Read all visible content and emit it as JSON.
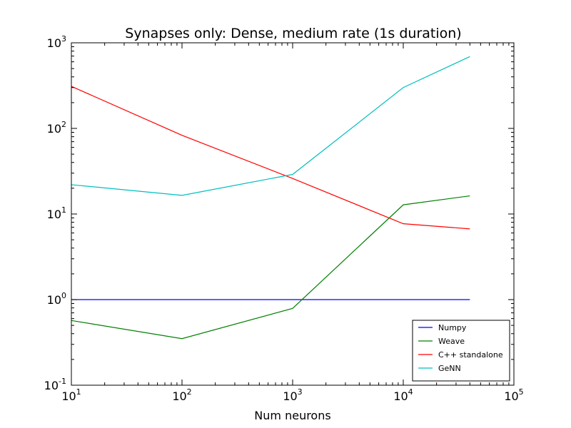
{
  "chart_data": {
    "type": "line",
    "title": "Synapses only: Dense, medium rate (1s duration)",
    "xlabel": "Num neurons",
    "ylabel": "",
    "xscale": "log",
    "yscale": "log",
    "xlim": [
      10,
      100000
    ],
    "ylim": [
      0.1,
      1000
    ],
    "x_ticks": [
      {
        "value": 10,
        "base": "10",
        "exp": "1"
      },
      {
        "value": 100,
        "base": "10",
        "exp": "2"
      },
      {
        "value": 1000,
        "base": "10",
        "exp": "3"
      },
      {
        "value": 10000,
        "base": "10",
        "exp": "4"
      },
      {
        "value": 100000,
        "base": "10",
        "exp": "5"
      }
    ],
    "y_ticks": [
      {
        "value": 0.1,
        "base": "10",
        "exp": "-1"
      },
      {
        "value": 1,
        "base": "10",
        "exp": "0"
      },
      {
        "value": 10,
        "base": "10",
        "exp": "1"
      },
      {
        "value": 100,
        "base": "10",
        "exp": "2"
      },
      {
        "value": 1000,
        "base": "10",
        "exp": "3"
      }
    ],
    "grid": false,
    "legend_position": "bottom-right",
    "x": [
      10,
      100,
      1000,
      10000,
      40000
    ],
    "series": [
      {
        "name": "Numpy",
        "color": "#0000ff",
        "values": [
          1.0,
          1.0,
          1.0,
          1.0,
          1.0
        ]
      },
      {
        "name": "Weave",
        "color": "#008000",
        "values": [
          0.57,
          0.35,
          0.79,
          12.8,
          16.3
        ]
      },
      {
        "name": "C++ standalone",
        "color": "#ff0000",
        "values": [
          310,
          83,
          26,
          7.7,
          6.7
        ]
      },
      {
        "name": "GeNN",
        "color": "#00bfbf",
        "values": [
          22,
          16.5,
          29,
          300,
          690
        ]
      }
    ]
  }
}
